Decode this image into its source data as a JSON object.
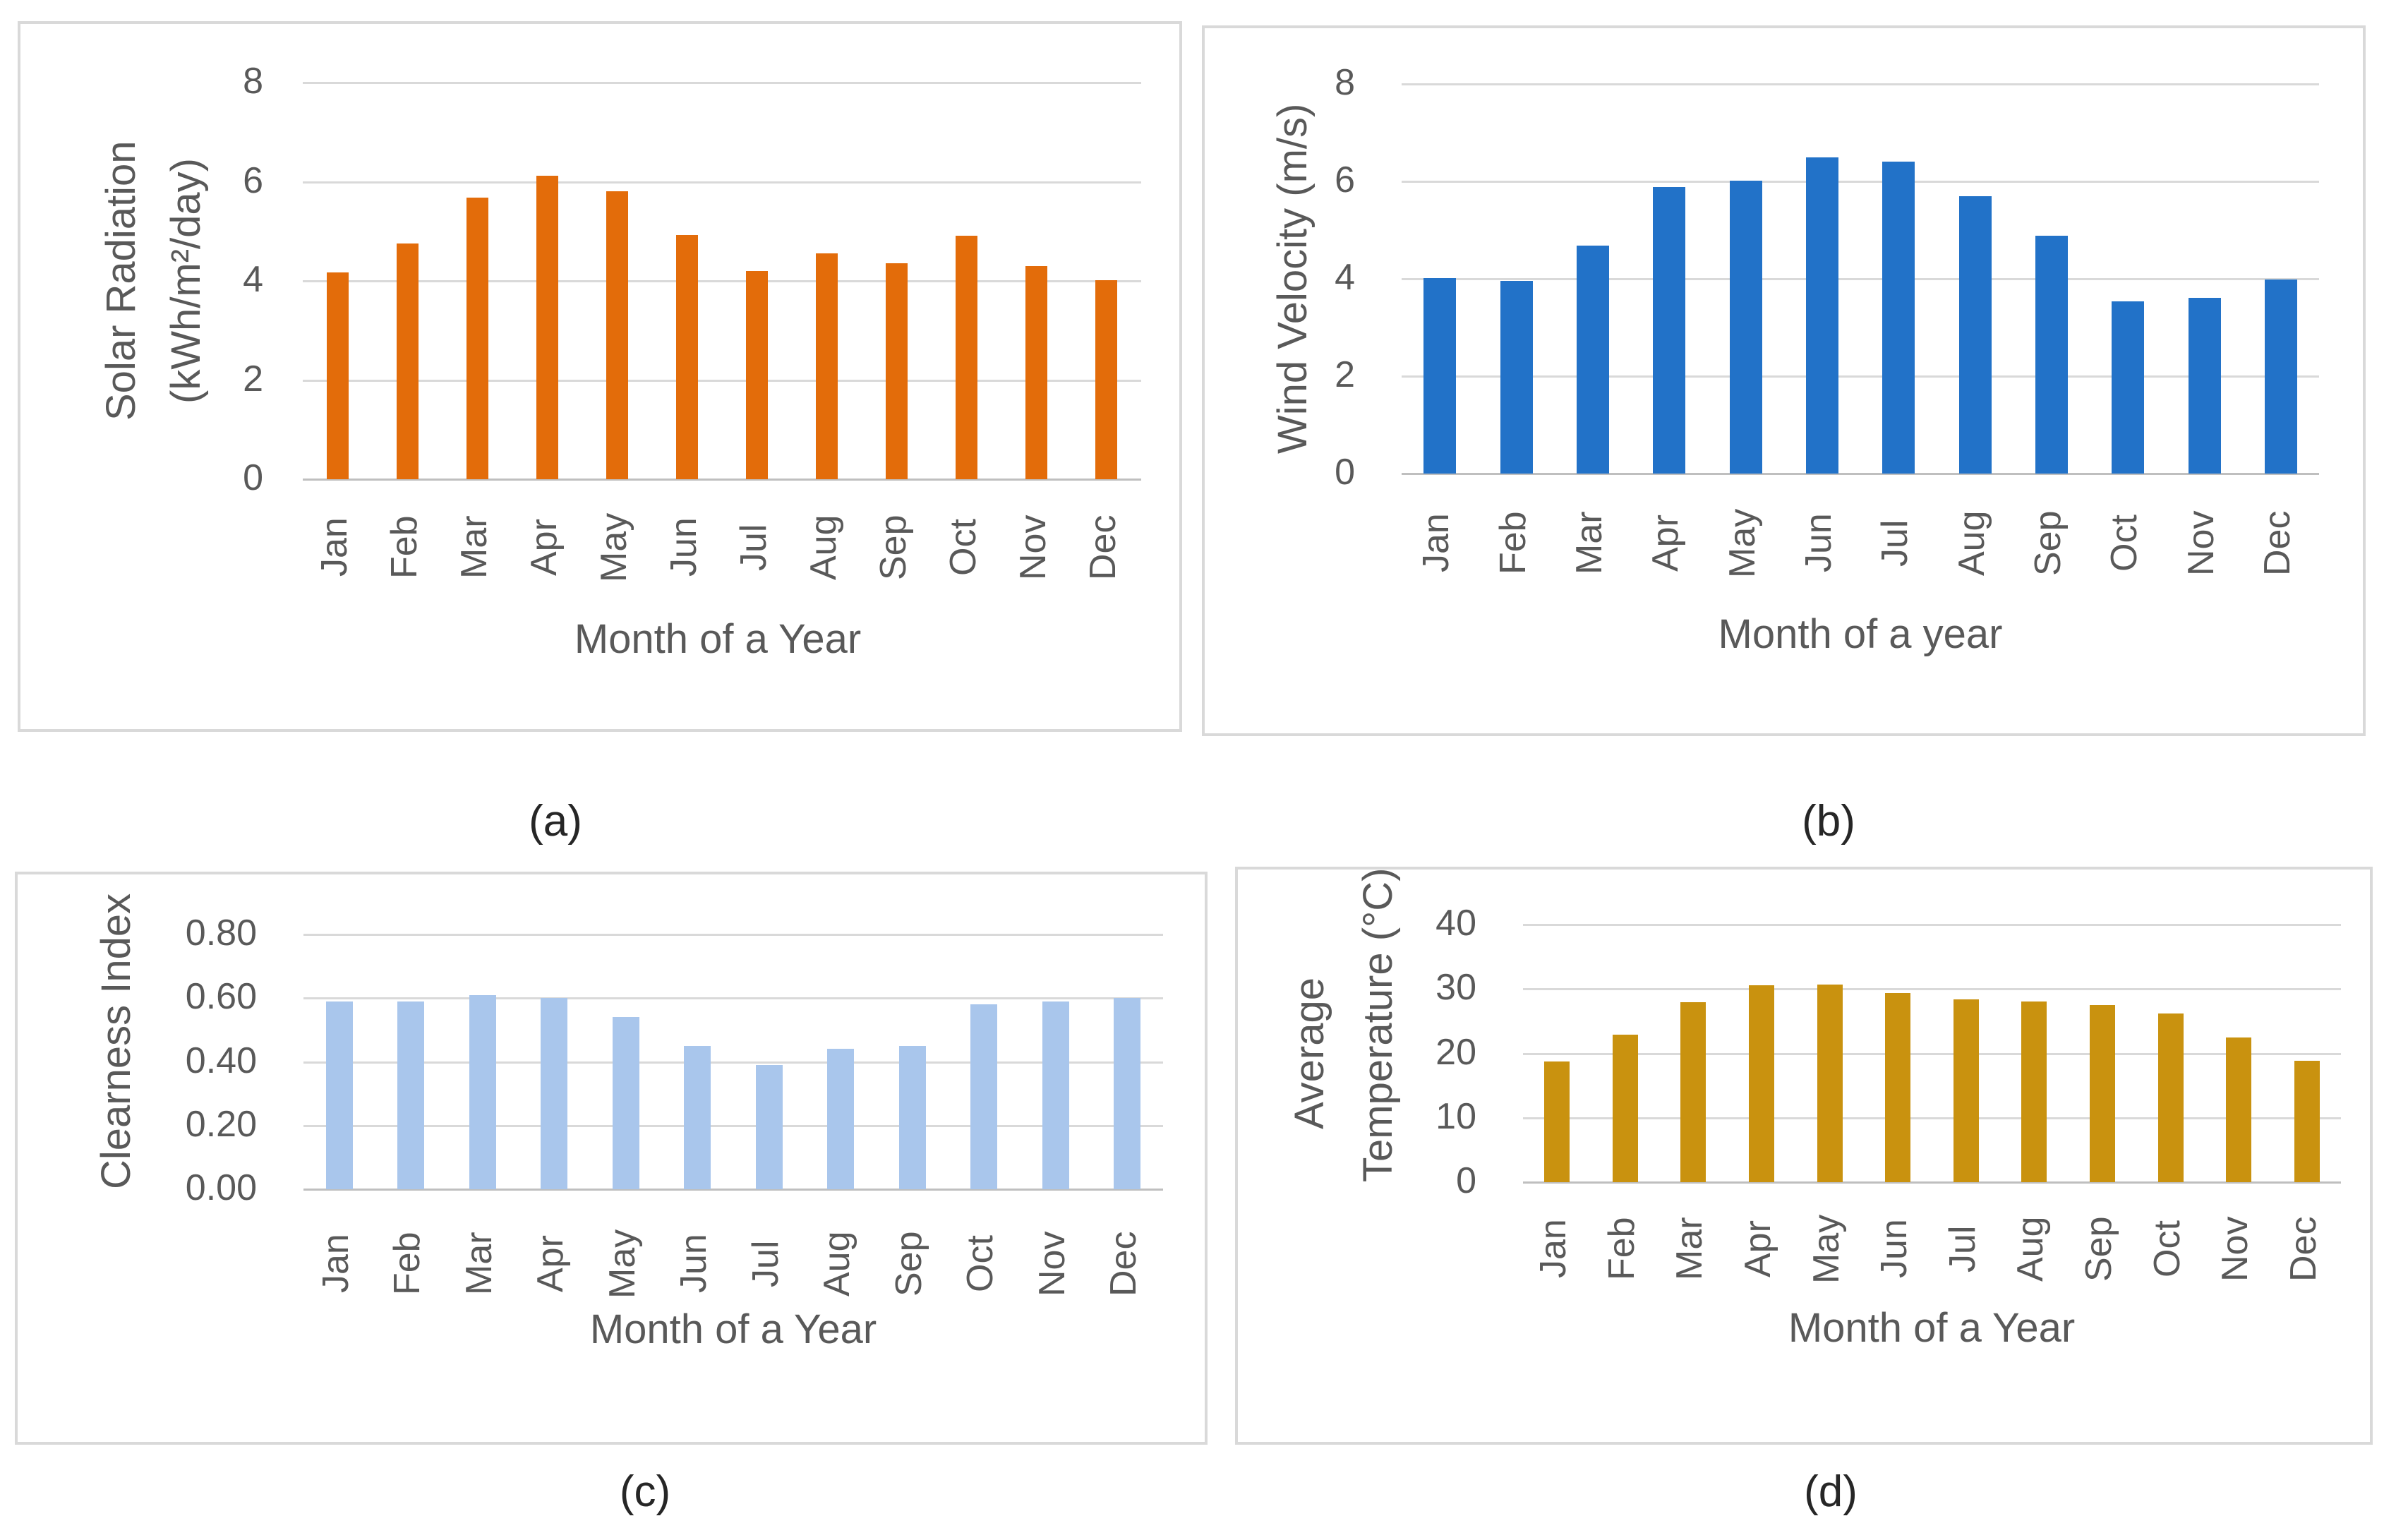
{
  "figure": {
    "description": "Four monthly climate resource bar charts",
    "months": [
      "Jan",
      "Feb",
      "Mar",
      "Apr",
      "May",
      "Jun",
      "Jul",
      "Aug",
      "Sep",
      "Oct",
      "Nov",
      "Dec"
    ]
  },
  "colors": {
    "background": "#FFFFFF",
    "panel_border": "#D9D9D9",
    "gridline": "#D9D9D9",
    "axis_line": "#BFBFBF",
    "axis_text": "#595959",
    "caption_text": "#262626",
    "solar_orange": "#E36C0A",
    "wind_blue": "#2272C8",
    "clearness_light_blue": "#A9C6EC",
    "temperature_gold": "#C9920F"
  },
  "chart_data": [
    {
      "id": "a",
      "type": "bar",
      "caption": "(a)",
      "ylabel_lines": [
        "Solar Radiation",
        "(kWh/m²/day)"
      ],
      "xlabel": "Month of a Year",
      "bar_color": "#E36C0A",
      "categories": [
        "Jan",
        "Feb",
        "Mar",
        "Apr",
        "May",
        "Jun",
        "Jul",
        "Aug",
        "Sep",
        "Oct",
        "Nov",
        "Dec"
      ],
      "values": [
        4.17,
        4.76,
        5.68,
        6.12,
        5.81,
        4.92,
        4.2,
        4.55,
        4.35,
        4.91,
        4.3,
        4.02
      ],
      "y_ticks": [
        "0",
        "2",
        "4",
        "6",
        "8"
      ],
      "ylim": [
        0,
        8
      ],
      "grid": true,
      "legend": "none"
    },
    {
      "id": "b",
      "type": "bar",
      "caption": "(b)",
      "ylabel_lines": [
        "Wind Velocity (m/s)"
      ],
      "xlabel": "Month of a year",
      "bar_color": "#2272C8",
      "categories": [
        "Jan",
        "Feb",
        "Mar",
        "Apr",
        "May",
        "Jun",
        "Jul",
        "Aug",
        "Sep",
        "Oct",
        "Nov",
        "Dec"
      ],
      "values": [
        4.01,
        3.96,
        4.68,
        5.89,
        6.02,
        6.49,
        6.41,
        5.69,
        4.89,
        3.53,
        3.61,
        3.99
      ],
      "y_ticks": [
        "0",
        "2",
        "4",
        "6",
        "8"
      ],
      "ylim": [
        0,
        8
      ],
      "grid": true,
      "legend": "none"
    },
    {
      "id": "c",
      "type": "bar",
      "caption": "(c)",
      "ylabel_lines": [
        "Clearness Index"
      ],
      "xlabel": "Month of a Year",
      "bar_color": "#A9C6EC",
      "categories": [
        "Jan",
        "Feb",
        "Mar",
        "Apr",
        "May",
        "Jun",
        "Jul",
        "Aug",
        "Sep",
        "Oct",
        "Nov",
        "Dec"
      ],
      "values": [
        0.59,
        0.59,
        0.61,
        0.6,
        0.54,
        0.45,
        0.39,
        0.44,
        0.45,
        0.58,
        0.59,
        0.6
      ],
      "y_ticks": [
        "0.00",
        "0.20",
        "0.40",
        "0.60",
        "0.80"
      ],
      "ylim": [
        0,
        0.8
      ],
      "grid": true,
      "legend": "none"
    },
    {
      "id": "d",
      "type": "bar",
      "caption": "(d)",
      "ylabel_lines": [
        "Average",
        "Temperature (°C)"
      ],
      "xlabel": "Month of a Year",
      "bar_color": "#C9920F",
      "categories": [
        "Jan",
        "Feb",
        "Mar",
        "Apr",
        "May",
        "Jun",
        "Jul",
        "Aug",
        "Sep",
        "Oct",
        "Nov",
        "Dec"
      ],
      "values": [
        18.7,
        22.9,
        27.9,
        30.6,
        30.7,
        29.4,
        28.4,
        28.1,
        27.5,
        26.2,
        22.5,
        18.9
      ],
      "y_ticks": [
        "0",
        "10",
        "20",
        "30",
        "40"
      ],
      "ylim": [
        0,
        40
      ],
      "grid": true,
      "legend": "none"
    }
  ]
}
